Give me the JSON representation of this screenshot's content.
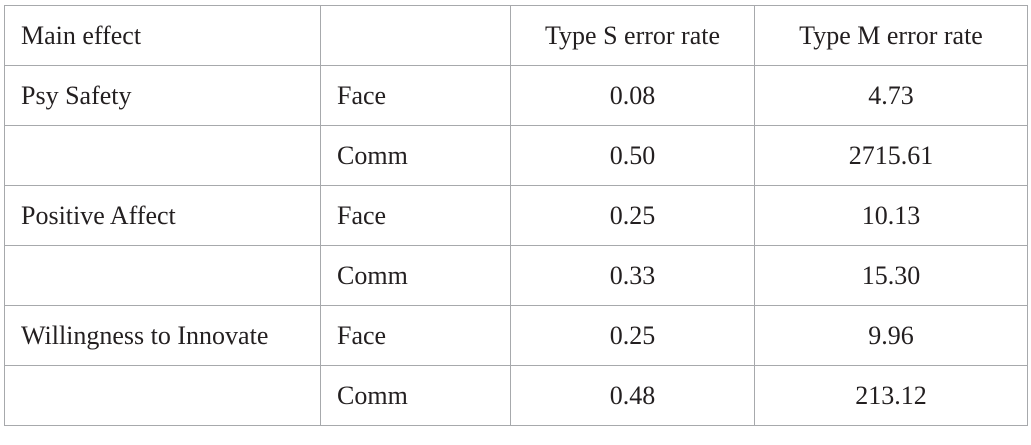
{
  "header": {
    "main_effect": "Main effect",
    "level": "",
    "type_s": "Type S error rate",
    "type_m": "Type M error rate"
  },
  "rows": [
    {
      "effect": "Psy Safety",
      "level": "Face",
      "type_s": "0.08",
      "type_m": "4.73"
    },
    {
      "effect": "",
      "level": "Comm",
      "type_s": "0.50",
      "type_m": "2715.61"
    },
    {
      "effect": "Positive Affect",
      "level": "Face",
      "type_s": "0.25",
      "type_m": "10.13"
    },
    {
      "effect": "",
      "level": "Comm",
      "type_s": "0.33",
      "type_m": "15.30"
    },
    {
      "effect": "Willingness to Innovate",
      "level": "Face",
      "type_s": "0.25",
      "type_m": "9.96"
    },
    {
      "effect": "",
      "level": "Comm",
      "type_s": "0.48",
      "type_m": "213.12"
    }
  ]
}
